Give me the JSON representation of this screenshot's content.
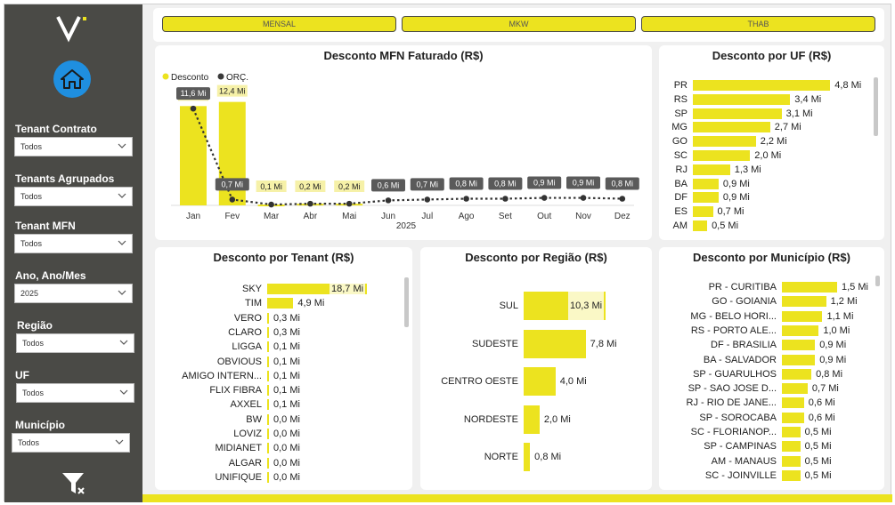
{
  "sidebar": {
    "filters": [
      {
        "label": "Tenant Contrato",
        "value": "Todos"
      },
      {
        "label": "Tenants Agrupados",
        "value": "Todos"
      },
      {
        "label": "Tenant MFN",
        "value": "Todos"
      },
      {
        "label": "Ano, Ano/Mes",
        "value": "2025"
      },
      {
        "label": "Região",
        "value": "Todos"
      },
      {
        "label": "UF",
        "value": "Todos"
      },
      {
        "label": "Município",
        "value": "Todos"
      }
    ]
  },
  "tabs": [
    "MENSAL",
    "MKW",
    "THAB"
  ],
  "colors": {
    "accent": "#ece31f",
    "sidebar": "#4a4a46",
    "home": "#1f8fe0",
    "dark": "#3a3a3a"
  },
  "mfn": {
    "title": "Desconto MFN Faturado (R$)",
    "legend": [
      "Desconto",
      "ORÇ."
    ],
    "year": "2025",
    "chart_data": {
      "type": "bar",
      "title": "Desconto MFN Faturado (R$)",
      "categories": [
        "Jan",
        "Fev",
        "Mar",
        "Abr",
        "Mai",
        "Jun",
        "Jul",
        "Ago",
        "Set",
        "Out",
        "Nov",
        "Dez"
      ],
      "series": [
        {
          "name": "Desconto",
          "type": "bar",
          "values": [
            11.9,
            12.4,
            0.1,
            0.2,
            0.2,
            null,
            null,
            null,
            null,
            null,
            null,
            null
          ],
          "labels": [
            "11,9 Mi",
            "12,4 Mi",
            "0,1 Mi",
            "0,2 Mi",
            "0,2 Mi",
            "",
            "",
            "",
            "",
            "",
            "",
            ""
          ]
        },
        {
          "name": "ORÇ.",
          "type": "line",
          "values": [
            11.6,
            0.7,
            0.1,
            0.2,
            0.2,
            0.6,
            0.7,
            0.8,
            0.8,
            0.9,
            0.9,
            0.8
          ],
          "labels": [
            "11,6 Mi",
            "0,7 Mi",
            "",
            "",
            "",
            "0,6 Mi",
            "0,7 Mi",
            "0,8 Mi",
            "0,8 Mi",
            "0,9 Mi",
            "0,9 Mi",
            "0,8 Mi"
          ]
        }
      ],
      "ylim": [
        0,
        13
      ]
    }
  },
  "uf": {
    "title": "Desconto por UF (R$)",
    "chart_data": {
      "type": "bar",
      "categories": [
        "PR",
        "RS",
        "SP",
        "MG",
        "GO",
        "SC",
        "RJ",
        "BA",
        "DF",
        "ES",
        "AM"
      ],
      "values": [
        4.8,
        3.4,
        3.1,
        2.7,
        2.2,
        2.0,
        1.3,
        0.9,
        0.9,
        0.7,
        0.5
      ],
      "labels": [
        "4,8 Mi",
        "3,4 Mi",
        "3,1 Mi",
        "2,7 Mi",
        "2,2 Mi",
        "2,0 Mi",
        "1,3 Mi",
        "0,9 Mi",
        "0,9 Mi",
        "0,7 Mi",
        "0,5 Mi"
      ],
      "xlim": [
        0,
        5.6
      ]
    }
  },
  "tenant": {
    "title": "Desconto por Tenant (R$)",
    "chart_data": {
      "type": "bar",
      "categories": [
        "SKY",
        "TIM",
        "VERO",
        "CLARO",
        "LIGGA",
        "OBVIOUS",
        "AMIGO INTERN...",
        "FLIX FIBRA",
        "AXXEL",
        "BW",
        "LOVIZ",
        "MIDIANET",
        "ALGAR",
        "UNIFIQUE"
      ],
      "values": [
        18.7,
        4.9,
        0.3,
        0.3,
        0.1,
        0.1,
        0.1,
        0.1,
        0.1,
        0.0,
        0.0,
        0.0,
        0.0,
        0.0
      ],
      "labels": [
        "18,7 Mi",
        "4,9 Mi",
        "0,3 Mi",
        "0,3 Mi",
        "0,1 Mi",
        "0,1 Mi",
        "0,1 Mi",
        "0,1 Mi",
        "0,1 Mi",
        "0,0 Mi",
        "0,0 Mi",
        "0,0 Mi",
        "0,0 Mi",
        "0,0 Mi"
      ],
      "xlim": [
        0,
        18.7
      ]
    }
  },
  "regiao": {
    "title": "Desconto por Região (R$)",
    "chart_data": {
      "type": "bar",
      "categories": [
        "SUL",
        "SUDESTE",
        "CENTRO OESTE",
        "NORDESTE",
        "NORTE"
      ],
      "values": [
        10.3,
        7.8,
        4.0,
        2.0,
        0.8
      ],
      "labels": [
        "10,3 Mi",
        "7,8 Mi",
        "4,0 Mi",
        "2,0 Mi",
        "0,8 Mi"
      ],
      "xlim": [
        0,
        10.3
      ]
    }
  },
  "municipio": {
    "title": "Desconto por Município (R$)",
    "chart_data": {
      "type": "bar",
      "categories": [
        "PR - CURITIBA",
        "GO - GOIANIA",
        "MG - BELO HORI...",
        "RS - PORTO ALE...",
        "DF - BRASILIA",
        "BA - SALVADOR",
        "SP - GUARULHOS",
        "SP - SAO JOSE D...",
        "RJ - RIO DE JANE...",
        "SP - SOROCABA",
        "SC - FLORIANOP...",
        "SP - CAMPINAS",
        "AM - MANAUS",
        "SC - JOINVILLE"
      ],
      "values": [
        1.5,
        1.2,
        1.1,
        1.0,
        0.9,
        0.9,
        0.8,
        0.7,
        0.6,
        0.6,
        0.5,
        0.5,
        0.5,
        0.5
      ],
      "labels": [
        "1,5 Mi",
        "1,2 Mi",
        "1,1 Mi",
        "1,0 Mi",
        "0,9 Mi",
        "0,9 Mi",
        "0,8 Mi",
        "0,7 Mi",
        "0,6 Mi",
        "0,6 Mi",
        "0,5 Mi",
        "0,5 Mi",
        "0,5 Mi",
        "0,5 Mi"
      ],
      "xlim": [
        0,
        1.5
      ]
    }
  }
}
